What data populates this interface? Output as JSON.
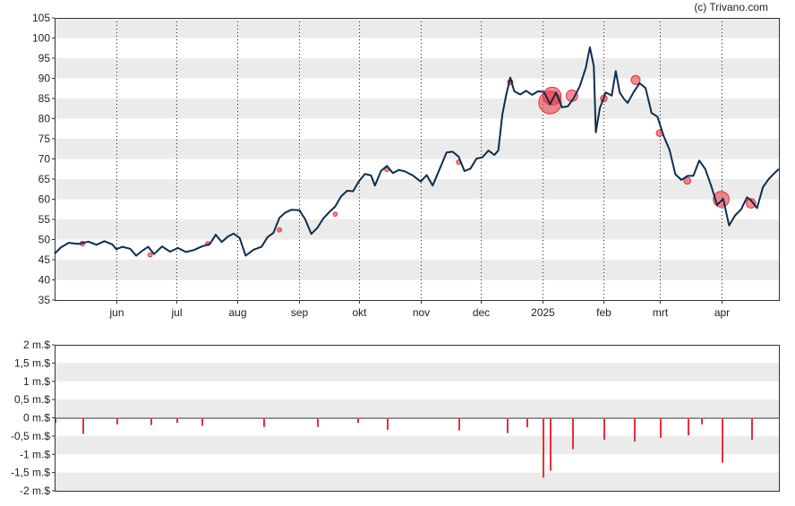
{
  "credit": "(c) Trivano.com",
  "colors": {
    "price_line": "#0d2d4d",
    "insider_marker": "#e8303a",
    "band": "#ebebeb",
    "volume_bar": "#e8303a"
  },
  "chart_data": [
    {
      "type": "line",
      "panel": "price",
      "ylim": [
        35,
        105
      ],
      "y_ticks": [
        35,
        40,
        45,
        50,
        55,
        60,
        65,
        70,
        75,
        80,
        85,
        90,
        95,
        100,
        105
      ],
      "xlim": [
        "2024-05-01",
        "2025-04-30"
      ],
      "month_labels": [
        {
          "date": "2024-06-01",
          "label": "jun"
        },
        {
          "date": "2024-07-01",
          "label": "jul"
        },
        {
          "date": "2024-08-01",
          "label": "aug"
        },
        {
          "date": "2024-09-01",
          "label": "sep"
        },
        {
          "date": "2024-10-01",
          "label": "okt"
        },
        {
          "date": "2024-11-01",
          "label": "nov"
        },
        {
          "date": "2024-12-01",
          "label": "dec"
        },
        {
          "date": "2025-01-01",
          "label": "2025"
        },
        {
          "date": "2025-02-01",
          "label": "feb"
        },
        {
          "date": "2025-03-01",
          "label": "mrt"
        },
        {
          "date": "2025-04-01",
          "label": "apr"
        }
      ],
      "series": [
        {
          "points": [
            [
              "2024-05-01",
              46.5
            ],
            [
              "2024-05-04",
              48.0
            ],
            [
              "2024-05-08",
              49.2
            ],
            [
              "2024-05-13",
              48.9
            ],
            [
              "2024-05-18",
              49.5
            ],
            [
              "2024-05-22",
              48.7
            ],
            [
              "2024-05-26",
              49.6
            ],
            [
              "2024-05-30",
              48.8
            ],
            [
              "2024-06-01",
              47.6
            ],
            [
              "2024-06-04",
              48.2
            ],
            [
              "2024-06-08",
              47.7
            ],
            [
              "2024-06-11",
              46.0
            ],
            [
              "2024-06-14",
              47.2
            ],
            [
              "2024-06-17",
              48.2
            ],
            [
              "2024-06-20",
              46.4
            ],
            [
              "2024-06-24",
              48.3
            ],
            [
              "2024-06-28",
              47.0
            ],
            [
              "2024-07-02",
              47.9
            ],
            [
              "2024-07-06",
              46.9
            ],
            [
              "2024-07-10",
              47.4
            ],
            [
              "2024-07-14",
              48.3
            ],
            [
              "2024-07-18",
              48.9
            ],
            [
              "2024-07-21",
              51.2
            ],
            [
              "2024-07-24",
              49.4
            ],
            [
              "2024-07-27",
              50.7
            ],
            [
              "2024-07-30",
              51.5
            ],
            [
              "2024-08-02",
              50.4
            ],
            [
              "2024-08-05",
              46.0
            ],
            [
              "2024-08-09",
              47.5
            ],
            [
              "2024-08-13",
              48.2
            ],
            [
              "2024-08-16",
              50.6
            ],
            [
              "2024-08-19",
              51.7
            ],
            [
              "2024-08-22",
              55.4
            ],
            [
              "2024-08-25",
              56.7
            ],
            [
              "2024-08-28",
              57.4
            ],
            [
              "2024-09-01",
              57.3
            ],
            [
              "2024-09-04",
              55.0
            ],
            [
              "2024-09-07",
              51.4
            ],
            [
              "2024-09-10",
              52.9
            ],
            [
              "2024-09-13",
              55.2
            ],
            [
              "2024-09-16",
              56.8
            ],
            [
              "2024-09-19",
              58.2
            ],
            [
              "2024-09-22",
              60.7
            ],
            [
              "2024-09-25",
              62.1
            ],
            [
              "2024-09-28",
              62.0
            ],
            [
              "2024-10-01",
              64.5
            ],
            [
              "2024-10-04",
              66.3
            ],
            [
              "2024-10-07",
              65.9
            ],
            [
              "2024-10-09",
              63.4
            ],
            [
              "2024-10-12",
              67.0
            ],
            [
              "2024-10-15",
              68.3
            ],
            [
              "2024-10-18",
              66.5
            ],
            [
              "2024-10-21",
              67.3
            ],
            [
              "2024-10-24",
              66.9
            ],
            [
              "2024-10-28",
              65.9
            ],
            [
              "2024-11-01",
              64.4
            ],
            [
              "2024-11-04",
              66.0
            ],
            [
              "2024-11-07",
              63.4
            ],
            [
              "2024-11-11",
              68.1
            ],
            [
              "2024-11-14",
              71.6
            ],
            [
              "2024-11-17",
              71.8
            ],
            [
              "2024-11-20",
              70.6
            ],
            [
              "2024-11-23",
              67.0
            ],
            [
              "2024-11-26",
              67.6
            ],
            [
              "2024-11-29",
              70.1
            ],
            [
              "2024-12-02",
              70.4
            ],
            [
              "2024-12-05",
              72.1
            ],
            [
              "2024-12-08",
              71.0
            ],
            [
              "2024-12-10",
              72.1
            ],
            [
              "2024-12-12",
              81.0
            ],
            [
              "2024-12-14",
              86.0
            ],
            [
              "2024-12-16",
              90.2
            ],
            [
              "2024-12-18",
              86.8
            ],
            [
              "2024-12-21",
              86.0
            ],
            [
              "2024-12-24",
              86.9
            ],
            [
              "2024-12-27",
              85.9
            ],
            [
              "2024-12-30",
              86.8
            ],
            [
              "2025-01-02",
              86.6
            ],
            [
              "2025-01-05",
              83.6
            ],
            [
              "2025-01-08",
              86.5
            ],
            [
              "2025-01-11",
              82.8
            ],
            [
              "2025-01-14",
              83.1
            ],
            [
              "2025-01-17",
              85.2
            ],
            [
              "2025-01-20",
              88.1
            ],
            [
              "2025-01-23",
              92.7
            ],
            [
              "2025-01-25",
              97.7
            ],
            [
              "2025-01-27",
              93.0
            ],
            [
              "2025-01-28",
              76.6
            ],
            [
              "2025-01-30",
              82.6
            ],
            [
              "2025-02-02",
              86.5
            ],
            [
              "2025-02-05",
              85.7
            ],
            [
              "2025-02-07",
              91.8
            ],
            [
              "2025-02-09",
              86.5
            ],
            [
              "2025-02-11",
              85.0
            ],
            [
              "2025-02-13",
              83.9
            ],
            [
              "2025-02-16",
              86.6
            ],
            [
              "2025-02-19",
              88.8
            ],
            [
              "2025-02-22",
              87.6
            ],
            [
              "2025-02-25",
              81.4
            ],
            [
              "2025-02-28",
              80.5
            ],
            [
              "2025-03-03",
              75.8
            ],
            [
              "2025-03-06",
              72.3
            ],
            [
              "2025-03-09",
              66.2
            ],
            [
              "2025-03-12",
              64.8
            ],
            [
              "2025-03-15",
              65.8
            ],
            [
              "2025-03-18",
              65.8
            ],
            [
              "2025-03-21",
              69.6
            ],
            [
              "2025-03-24",
              67.5
            ],
            [
              "2025-03-27",
              63.3
            ],
            [
              "2025-03-30",
              58.6
            ],
            [
              "2025-04-02",
              60.1
            ],
            [
              "2025-04-05",
              53.5
            ],
            [
              "2025-04-08",
              56.0
            ],
            [
              "2025-04-11",
              57.5
            ],
            [
              "2025-04-14",
              60.5
            ],
            [
              "2025-04-16",
              59.7
            ],
            [
              "2025-04-19",
              57.8
            ],
            [
              "2025-04-22",
              63.0
            ],
            [
              "2025-04-25",
              65.1
            ],
            [
              "2025-04-28",
              66.6
            ],
            [
              "2025-04-30",
              67.5
            ]
          ]
        }
      ],
      "markers": [
        [
          "2024-05-15",
          49.0,
          2.6
        ],
        [
          "2024-06-18",
          46.2,
          2.3
        ],
        [
          "2024-07-17",
          49.0,
          2.4
        ],
        [
          "2024-08-22",
          52.4,
          2.4
        ],
        [
          "2024-09-19",
          56.3,
          2.3
        ],
        [
          "2024-10-15",
          67.4,
          2.4
        ],
        [
          "2024-11-20",
          69.2,
          2.4
        ],
        [
          "2024-12-16",
          89.1,
          3.0
        ],
        [
          "2025-01-05",
          84.0,
          12.6
        ],
        [
          "2025-01-06",
          85.6,
          10.0
        ],
        [
          "2025-01-16",
          85.7,
          6.4
        ],
        [
          "2025-02-01",
          85.0,
          3.7
        ],
        [
          "2025-02-17",
          89.6,
          5.0
        ],
        [
          "2025-03-01",
          76.4,
          3.6
        ],
        [
          "2025-03-15",
          64.6,
          3.8
        ],
        [
          "2025-04-01",
          60.0,
          8.8
        ],
        [
          "2025-04-16",
          59.0,
          5.3
        ]
      ]
    },
    {
      "type": "bar",
      "panel": "insider-volume",
      "ylim": [
        -2,
        2
      ],
      "y_ticks": [
        {
          "value": 2,
          "label": "2 m.$"
        },
        {
          "value": 1.5,
          "label": "1,5 m.$"
        },
        {
          "value": 1,
          "label": "1 m.$"
        },
        {
          "value": 0.5,
          "label": "0,5 m.$"
        },
        {
          "value": 0,
          "label": "0 m.$"
        },
        {
          "value": -0.5,
          "label": "-0,5 m.$"
        },
        {
          "value": -1,
          "label": "-1 m.$"
        },
        {
          "value": -1.5,
          "label": "-1,5 m.$"
        },
        {
          "value": -2,
          "label": "-2 m.$"
        }
      ],
      "bars": [
        [
          "2024-05-01",
          -0.14
        ],
        [
          "2024-05-15",
          -0.44
        ],
        [
          "2024-06-01",
          -0.18
        ],
        [
          "2024-06-18",
          -0.2
        ],
        [
          "2024-07-01",
          -0.14
        ],
        [
          "2024-07-14",
          -0.22
        ],
        [
          "2024-08-14",
          -0.25
        ],
        [
          "2024-09-10",
          -0.25
        ],
        [
          "2024-09-30",
          -0.14
        ],
        [
          "2024-10-15",
          -0.33
        ],
        [
          "2024-11-20",
          -0.35
        ],
        [
          "2024-12-14",
          -0.42
        ],
        [
          "2024-12-24",
          -0.26
        ],
        [
          "2025-01-01",
          -1.64
        ],
        [
          "2025-01-05",
          -1.45
        ],
        [
          "2025-01-16",
          -0.86
        ],
        [
          "2025-02-01",
          -0.6
        ],
        [
          "2025-02-16",
          -0.65
        ],
        [
          "2025-03-01",
          -0.55
        ],
        [
          "2025-03-15",
          -0.48
        ],
        [
          "2025-03-22",
          -0.18
        ],
        [
          "2025-04-01",
          -1.23
        ],
        [
          "2025-04-16",
          -0.6
        ]
      ]
    }
  ]
}
